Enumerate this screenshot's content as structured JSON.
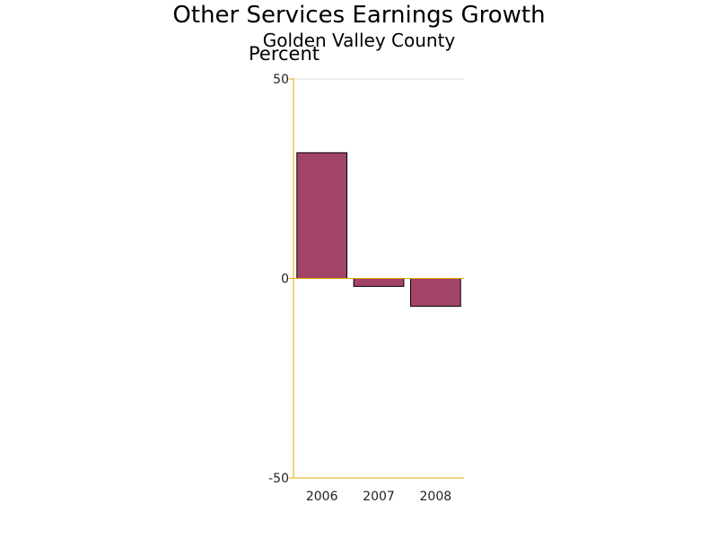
{
  "chart_data": {
    "type": "bar",
    "title": "Other Services Earnings Growth",
    "subtitle": "Golden Valley County",
    "ylabel": "Percent",
    "xlabel": "",
    "categories": [
      "2006",
      "2007",
      "2008"
    ],
    "values": [
      31.5,
      -2,
      -7
    ],
    "ylim": [
      -50,
      50
    ],
    "yticks": [
      50,
      0,
      -50
    ],
    "grid": false,
    "colors": {
      "bar": "#a24468",
      "bar_outline": "#000000",
      "axis": "#e0a800",
      "top_line": "#dddddd"
    }
  }
}
